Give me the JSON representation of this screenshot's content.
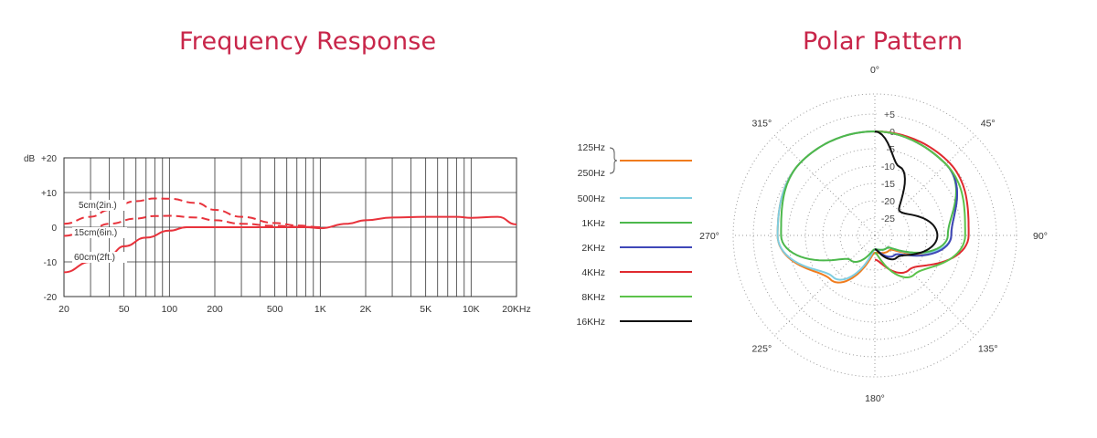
{
  "titles": {
    "frequency_response": "Frequency Response",
    "polar_pattern": "Polar Pattern"
  },
  "colors": {
    "title": "#c8264a",
    "frequency_curve": "#e8333c",
    "grid": "#333333",
    "polar_grid": "#9a9a9a"
  },
  "chart_data": [
    {
      "type": "line",
      "title": "Frequency Response",
      "xscale": "log",
      "xlim": [
        20,
        20000
      ],
      "ylim": [
        -20,
        20
      ],
      "ylabel": "dB",
      "y_ticks": [
        {
          "value": 20,
          "label": "+20"
        },
        {
          "value": 10,
          "label": "+10"
        },
        {
          "value": 0,
          "label": "0"
        },
        {
          "value": -10,
          "label": "-10"
        },
        {
          "value": -20,
          "label": "-20"
        }
      ],
      "x_ticks": [
        {
          "value": 20,
          "label": "20"
        },
        {
          "value": 50,
          "label": "50"
        },
        {
          "value": 100,
          "label": "100"
        },
        {
          "value": 200,
          "label": "200"
        },
        {
          "value": 500,
          "label": "500"
        },
        {
          "value": 1000,
          "label": "1K"
        },
        {
          "value": 2000,
          "label": "2K"
        },
        {
          "value": 5000,
          "label": "5K"
        },
        {
          "value": 10000,
          "label": "10K"
        },
        {
          "value": 20000,
          "label": "20KHz"
        }
      ],
      "grid_frequencies": [
        20,
        30,
        40,
        50,
        60,
        70,
        80,
        90,
        100,
        200,
        300,
        400,
        500,
        600,
        700,
        800,
        900,
        1000,
        2000,
        3000,
        4000,
        5000,
        6000,
        7000,
        8000,
        9000,
        10000,
        20000
      ],
      "series": [
        {
          "name": "5cm(2in.)",
          "style": "dashed",
          "x": [
            20,
            30,
            40,
            60,
            80,
            100,
            150,
            200,
            300,
            500,
            700,
            1000
          ],
          "y": [
            1,
            3,
            5,
            7.5,
            8.3,
            8.2,
            7,
            5,
            3,
            1.2,
            0.5,
            0
          ]
        },
        {
          "name": "15cm(6in.)",
          "style": "dashed",
          "x": [
            20,
            30,
            40,
            60,
            80,
            100,
            150,
            200,
            300,
            500,
            700,
            1000
          ],
          "y": [
            -2.5,
            -0.5,
            1,
            2.5,
            3.2,
            3.3,
            2.8,
            2,
            1,
            0.4,
            0.1,
            0
          ]
        },
        {
          "name": "60cm(2ft.)",
          "style": "solid",
          "x": [
            20,
            30,
            40,
            50,
            70,
            100,
            130,
            150,
            200,
            300,
            500,
            700,
            800,
            1000,
            1500,
            2000,
            3000,
            5000,
            8000,
            10000,
            15000,
            20000
          ],
          "y": [
            -13,
            -10,
            -8,
            -5.5,
            -3,
            -1,
            0,
            0,
            0,
            0,
            0,
            0,
            0,
            -0.3,
            1,
            2,
            2.8,
            3,
            3,
            2.7,
            3,
            0.8
          ]
        }
      ]
    },
    {
      "type": "polar",
      "title": "Polar Pattern",
      "rlim": [
        -30,
        5
      ],
      "angle_labels": [
        {
          "deg": 0,
          "label": "0°"
        },
        {
          "deg": 45,
          "label": "45°"
        },
        {
          "deg": 90,
          "label": "90°"
        },
        {
          "deg": 135,
          "label": "135°"
        },
        {
          "deg": 180,
          "label": "180°"
        },
        {
          "deg": 225,
          "label": "225°"
        },
        {
          "deg": 270,
          "label": "270°"
        },
        {
          "deg": 315,
          "label": "315°"
        }
      ],
      "radial_ticks": [
        {
          "value": 5,
          "label": "+5"
        },
        {
          "value": 0,
          "label": "0"
        },
        {
          "value": -5,
          "label": "-5"
        },
        {
          "value": -10,
          "label": "-10"
        },
        {
          "value": -15,
          "label": "-15"
        },
        {
          "value": -20,
          "label": "-20"
        },
        {
          "value": -25,
          "label": "-25"
        }
      ],
      "legend": [
        {
          "label": "125Hz",
          "color": ""
        },
        {
          "label": "250Hz",
          "color": "#f07c1e"
        },
        {
          "label": "500Hz",
          "color": "#7fcde0"
        },
        {
          "label": "1KHz",
          "color": "#4cb84c"
        },
        {
          "label": "2KHz",
          "color": "#3f47b8"
        },
        {
          "label": "4KHz",
          "color": "#e02a2f"
        },
        {
          "label": "8KHz",
          "color": "#5cc24a"
        },
        {
          "label": "16KHz",
          "color": "#111111"
        }
      ],
      "series": [
        {
          "name": "125Hz / 250Hz",
          "color": "#f07c1e",
          "theta": [
            0,
            45,
            90,
            135,
            180,
            225,
            270,
            315,
            360
          ],
          "r": [
            0,
            -1,
            -8,
            -24,
            -25,
            -12,
            -2,
            0,
            0
          ]
        },
        {
          "name": "500Hz",
          "color": "#7fcde0",
          "theta": [
            0,
            45,
            90,
            135,
            180,
            225,
            270,
            315,
            360
          ],
          "r": [
            0,
            -1,
            -8,
            -25,
            -26,
            -13,
            -2,
            0,
            0
          ]
        },
        {
          "name": "1KHz",
          "color": "#4cb84c",
          "theta": [
            0,
            45,
            90,
            135,
            180,
            225,
            270,
            315,
            360
          ],
          "r": [
            0,
            -1,
            -9,
            -25,
            -26,
            -20,
            -3,
            0,
            0
          ]
        },
        {
          "name": "2KHz",
          "color": "#3f47b8",
          "theta": [
            0,
            45,
            90,
            135,
            180
          ],
          "r": [
            0,
            -1,
            -8,
            -22,
            -26
          ]
        },
        {
          "name": "4KHz",
          "color": "#e02a2f",
          "theta": [
            0,
            45,
            90,
            135,
            180
          ],
          "r": [
            0,
            0,
            -3,
            -16,
            -23
          ]
        },
        {
          "name": "8KHz",
          "color": "#5cc24a",
          "theta": [
            0,
            45,
            90,
            135,
            180
          ],
          "r": [
            0,
            -1,
            -4,
            -14,
            -25
          ]
        },
        {
          "name": "16KHz",
          "color": "#111111",
          "theta": [
            0,
            20,
            45,
            90,
            135,
            180
          ],
          "r": [
            0,
            -9,
            -20,
            -12,
            -21,
            -26
          ]
        }
      ]
    }
  ]
}
